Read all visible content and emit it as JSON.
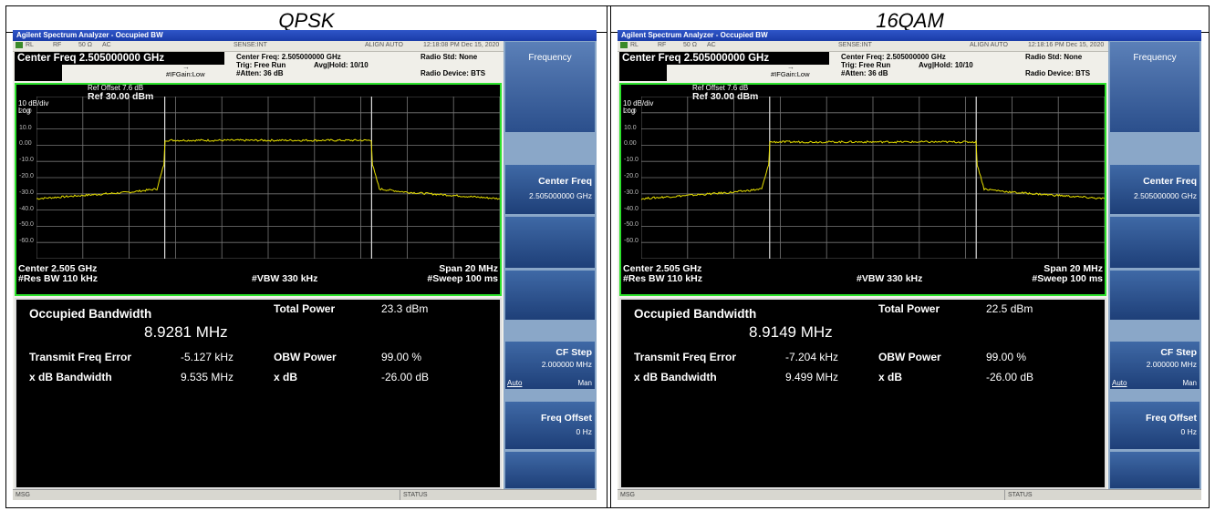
{
  "panels": [
    {
      "col_title": "QPSK",
      "window_title": "Agilent Spectrum Analyzer - Occupied BW",
      "top_status": {
        "rl": "RL",
        "rf": "RF",
        "impedance": "50 Ω",
        "coupling": "AC",
        "sense": "SENSE:INT",
        "align": "ALIGN AUTO",
        "datetime": "12:18:08 PM Dec 15, 2020"
      },
      "center_freq_title": "Center Freq 2.505000000 GHz",
      "info": {
        "center_freq": "Center Freq: 2.505000000 GHz",
        "trig": "Trig: Free Run",
        "avg_hold": "Avg|Hold: 10/10",
        "ifgain": "#IFGain:Low",
        "atten": "#Atten: 36 dB",
        "radio_std": "Radio Std: None",
        "radio_device": "Radio Device: BTS"
      },
      "graph": {
        "ref_offset": "Ref Offset 7.6 dB",
        "scale": "10 dB/div",
        "ref_level": "Ref 30.00 dBm",
        "log": "Log",
        "center": "Center  2.505 GHz",
        "res_bw": "#Res BW  110 kHz",
        "vbw": "#VBW  330 kHz",
        "span": "Span 20 MHz",
        "sweep": "#Sweep  100 ms",
        "yticks": [
          "20.0",
          "10.0",
          "0.00",
          "-10.0",
          "-20.0",
          "-30.0",
          "-40.0",
          "-50.0",
          "-60.0"
        ]
      },
      "results": {
        "obw_label": "Occupied Bandwidth",
        "obw_value": "8.9281 MHz",
        "total_power_label": "Total Power",
        "total_power_value": "23.3 dBm",
        "tfe_label": "Transmit Freq Error",
        "tfe_value": "-5.127 kHz",
        "obw_power_label": "OBW Power",
        "obw_power_value": "99.00 %",
        "xdb_bw_label": "x dB Bandwidth",
        "xdb_bw_value": "9.535 MHz",
        "xdb_label": "x dB",
        "xdb_value": "-26.00 dB"
      },
      "softkeys": {
        "menu": "Frequency",
        "center_freq": "Center Freq",
        "center_freq_val": "2.505000000 GHz",
        "cf_step": "CF Step",
        "cf_step_val": "2.000000 MHz",
        "auto": "Auto",
        "man": "Man",
        "freq_offset": "Freq Offset",
        "freq_offset_val": "0 Hz"
      },
      "statusbar": {
        "msg": "MSG",
        "status": "STATUS"
      },
      "chart_data": {
        "type": "line",
        "xlabel": "",
        "ylabel": "",
        "x_range_mhz": [
          -10,
          10
        ],
        "ylim": [
          -70,
          30
        ],
        "x": [
          -10,
          -8,
          -6,
          -4.8,
          -4.5,
          -4.45,
          0,
          4.45,
          4.5,
          4.8,
          6,
          8,
          10
        ],
        "values": [
          -33,
          -31,
          -29,
          -27,
          -12,
          3,
          3,
          3,
          -12,
          -27,
          -29,
          -31,
          -33
        ]
      }
    },
    {
      "col_title": "16QAM",
      "window_title": "Agilent Spectrum Analyzer - Occupied BW",
      "top_status": {
        "rl": "RL",
        "rf": "RF",
        "impedance": "50 Ω",
        "coupling": "AC",
        "sense": "SENSE:INT",
        "align": "ALIGN AUTO",
        "datetime": "12:18:16 PM Dec 15, 2020"
      },
      "center_freq_title": "Center Freq 2.505000000 GHz",
      "info": {
        "center_freq": "Center Freq: 2.505000000 GHz",
        "trig": "Trig: Free Run",
        "avg_hold": "Avg|Hold: 10/10",
        "ifgain": "#IFGain:Low",
        "atten": "#Atten: 36 dB",
        "radio_std": "Radio Std: None",
        "radio_device": "Radio Device: BTS"
      },
      "graph": {
        "ref_offset": "Ref Offset 7.6 dB",
        "scale": "10 dB/div",
        "ref_level": "Ref 30.00 dBm",
        "log": "Log",
        "center": "Center  2.505 GHz",
        "res_bw": "#Res BW  110 kHz",
        "vbw": "#VBW  330 kHz",
        "span": "Span 20 MHz",
        "sweep": "#Sweep  100 ms",
        "yticks": [
          "20.0",
          "10.0",
          "0.00",
          "-10.0",
          "-20.0",
          "-30.0",
          "-40.0",
          "-50.0",
          "-60.0"
        ]
      },
      "results": {
        "obw_label": "Occupied Bandwidth",
        "obw_value": "8.9149 MHz",
        "total_power_label": "Total Power",
        "total_power_value": "22.5 dBm",
        "tfe_label": "Transmit Freq Error",
        "tfe_value": "-7.204 kHz",
        "obw_power_label": "OBW Power",
        "obw_power_value": "99.00 %",
        "xdb_bw_label": "x dB Bandwidth",
        "xdb_bw_value": "9.499 MHz",
        "xdb_label": "x dB",
        "xdb_value": "-26.00 dB"
      },
      "softkeys": {
        "menu": "Frequency",
        "center_freq": "Center Freq",
        "center_freq_val": "2.505000000 GHz",
        "cf_step": "CF Step",
        "cf_step_val": "2.000000 MHz",
        "auto": "Auto",
        "man": "Man",
        "freq_offset": "Freq Offset",
        "freq_offset_val": "0 Hz"
      },
      "statusbar": {
        "msg": "MSG",
        "status": "STATUS"
      },
      "chart_data": {
        "type": "line",
        "xlabel": "",
        "ylabel": "",
        "x_range_mhz": [
          -10,
          10
        ],
        "ylim": [
          -70,
          30
        ],
        "x": [
          -10,
          -8,
          -6,
          -4.8,
          -4.5,
          -4.45,
          0,
          4.45,
          4.5,
          4.8,
          6,
          8,
          10
        ],
        "values": [
          -33,
          -31,
          -29,
          -27,
          -12,
          2,
          2,
          2,
          -12,
          -27,
          -29,
          -31,
          -33
        ]
      }
    }
  ],
  "colors": {
    "trace": "#e8e000",
    "graph_border": "#2ce22c",
    "softkey": "#1e3f78",
    "title_bar": "#2f55c8"
  }
}
